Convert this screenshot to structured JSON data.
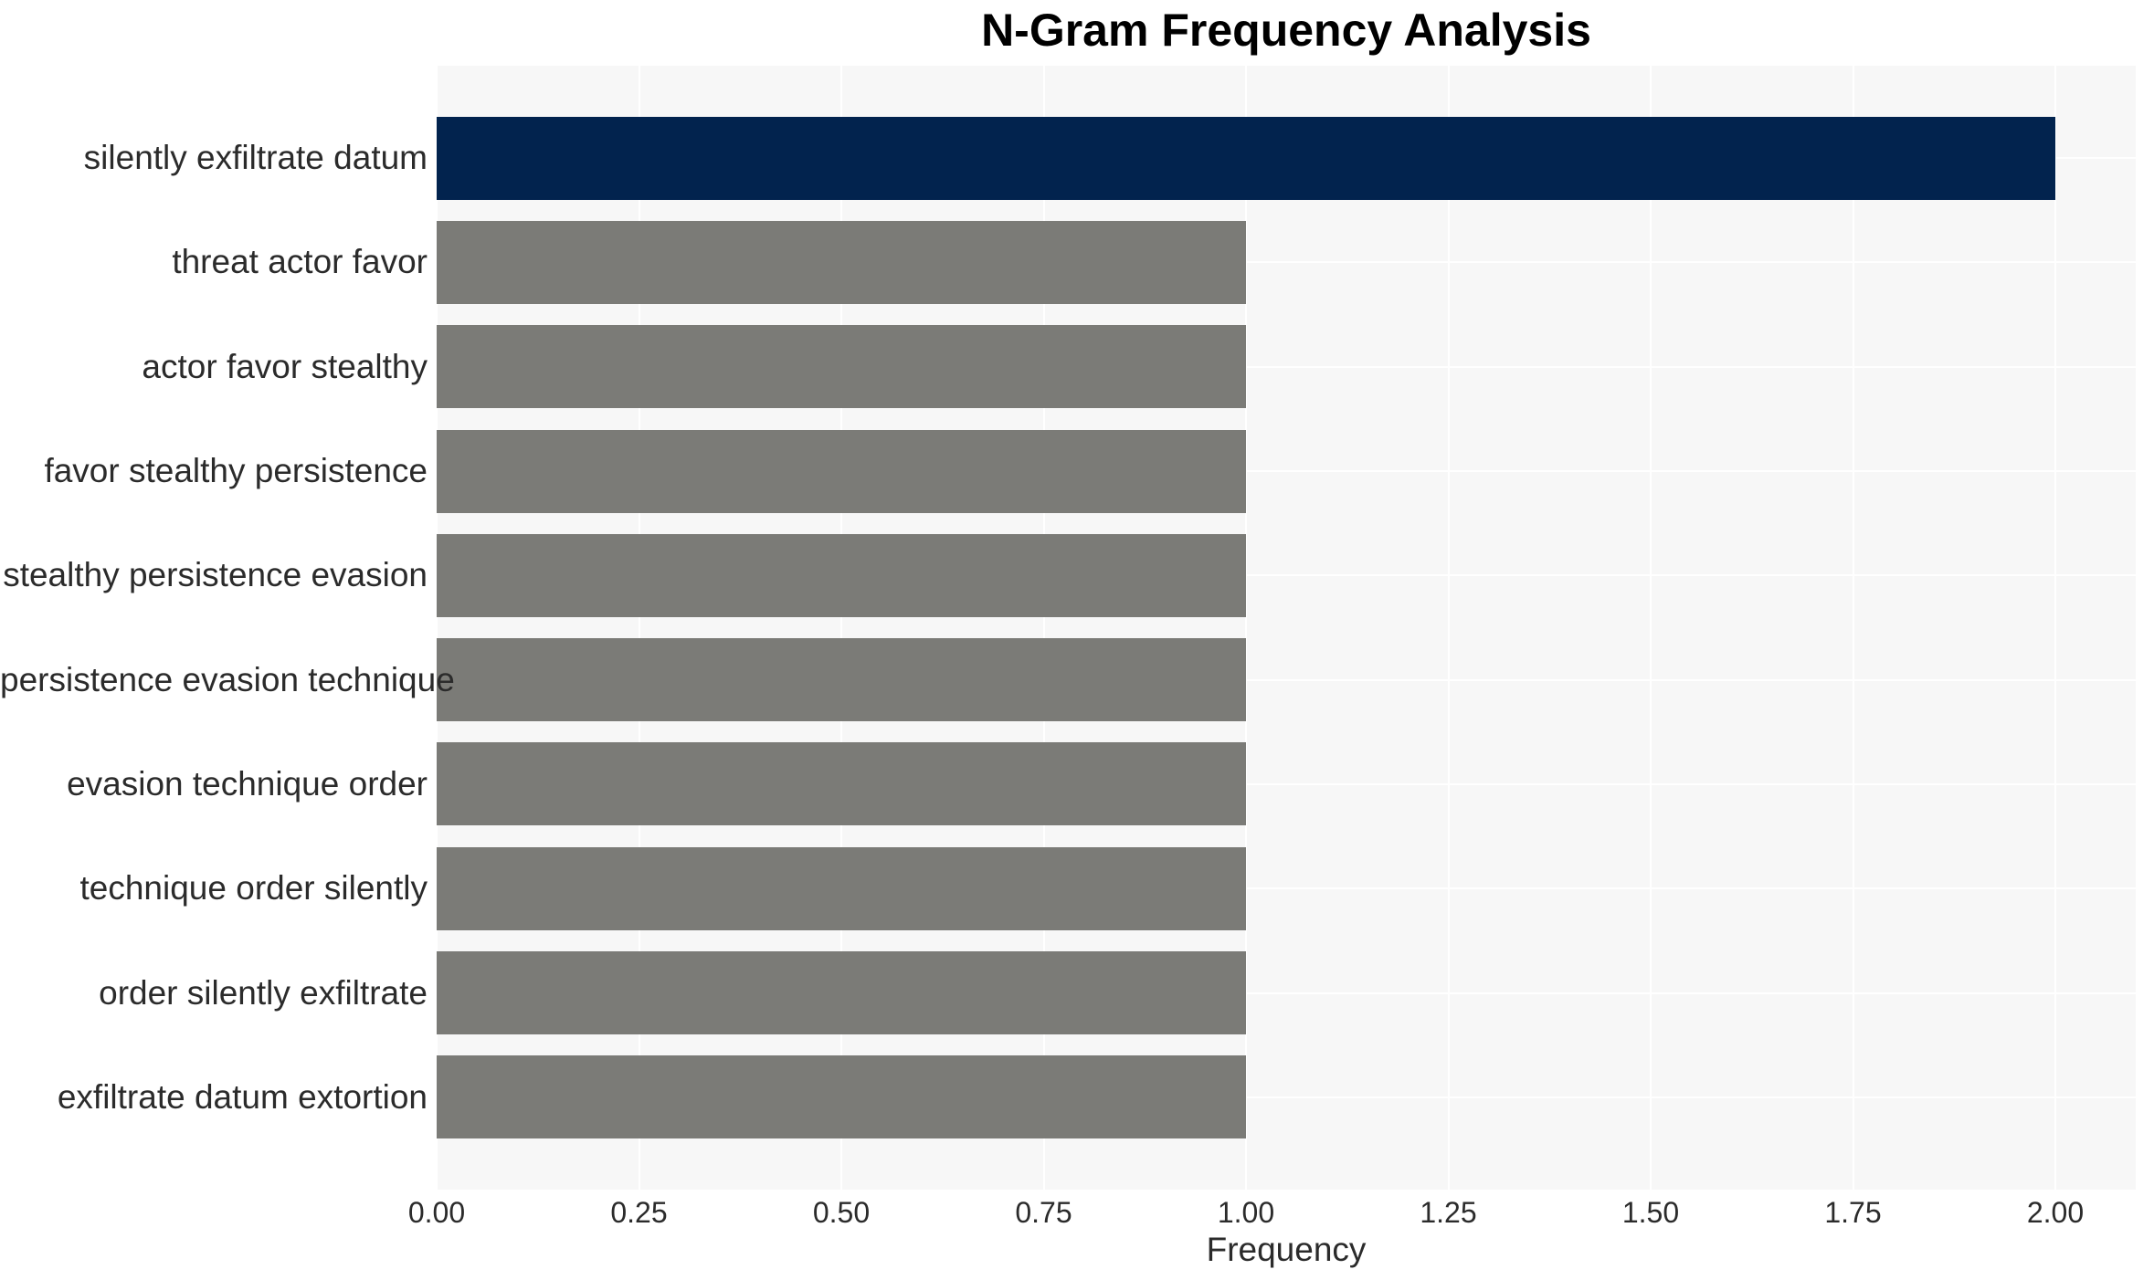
{
  "chart_data": {
    "type": "bar",
    "orientation": "horizontal",
    "title": "N-Gram Frequency Analysis",
    "xlabel": "Frequency",
    "ylabel": "",
    "categories": [
      "silently exfiltrate datum",
      "threat actor favor",
      "actor favor stealthy",
      "favor stealthy persistence",
      "stealthy persistence evasion",
      "persistence evasion technique",
      "evasion technique order",
      "technique order silently",
      "order silently exfiltrate",
      "exfiltrate datum extortion"
    ],
    "values": [
      2,
      1,
      1,
      1,
      1,
      1,
      1,
      1,
      1,
      1
    ],
    "xlim": [
      0,
      2.1
    ],
    "xticks": [
      0,
      0.25,
      0.5,
      0.75,
      1.0,
      1.25,
      1.5,
      1.75,
      2.0
    ],
    "xtick_labels": [
      "0.00",
      "0.25",
      "0.50",
      "0.75",
      "1.00",
      "1.25",
      "1.50",
      "1.75",
      "2.00"
    ],
    "grid": true,
    "legend": false,
    "colors": {
      "bar_highlight": "#02234e",
      "bar_default": "#7b7b77",
      "plot_background": "#f7f7f7",
      "gridline": "#ffffff",
      "tick_text": "#2b2b2b",
      "title_text": "#000000"
    }
  }
}
